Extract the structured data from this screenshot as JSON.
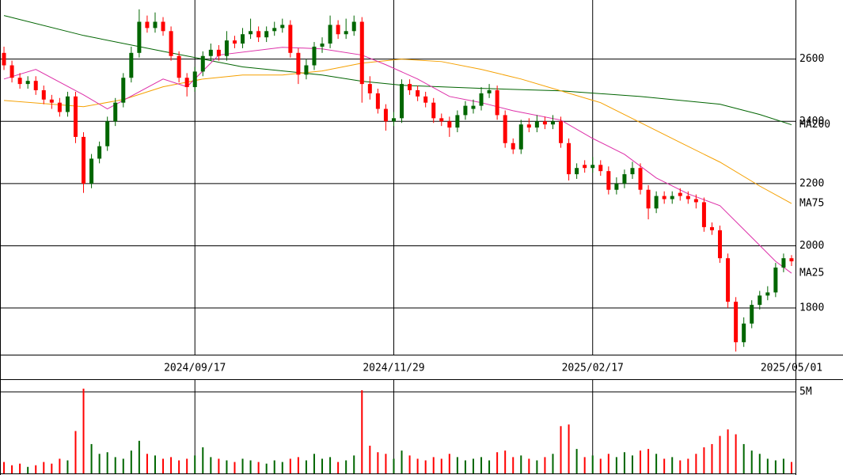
{
  "chart_data": {
    "type": "candlestick",
    "categories": [
      null,
      null,
      null,
      null,
      null,
      null,
      null,
      null,
      null,
      null,
      null,
      null,
      null,
      null,
      null,
      null,
      null,
      null,
      null,
      null,
      null,
      null,
      null,
      null,
      "2024/09/17",
      null,
      null,
      null,
      null,
      null,
      null,
      null,
      null,
      null,
      null,
      null,
      null,
      null,
      null,
      null,
      null,
      null,
      null,
      null,
      null,
      null,
      null,
      null,
      null,
      "2024/11/29",
      null,
      null,
      null,
      null,
      null,
      null,
      null,
      null,
      null,
      null,
      null,
      null,
      null,
      null,
      null,
      null,
      null,
      null,
      null,
      null,
      null,
      null,
      null,
      null,
      "2025/02/17",
      null,
      null,
      null,
      null,
      null,
      null,
      null,
      null,
      null,
      null,
      null,
      null,
      null,
      null,
      null,
      null,
      null,
      null,
      null,
      null,
      null,
      null,
      null,
      null,
      "2025/05/01"
    ],
    "open": [
      2620,
      2580,
      2540,
      2520,
      2530,
      2500,
      2470,
      2460,
      2430,
      2480,
      2350,
      2200,
      2280,
      2320,
      2400,
      2460,
      2540,
      2620,
      2720,
      2700,
      2720,
      2690,
      2610,
      2540,
      2510,
      2560,
      2610,
      2630,
      2610,
      2660,
      2650,
      2680,
      2690,
      2670,
      2690,
      2700,
      2710,
      2620,
      2550,
      2580,
      2640,
      2650,
      2710,
      2680,
      2690,
      2720,
      2520,
      2490,
      2440,
      2400,
      2410,
      2520,
      2500,
      2480,
      2460,
      2410,
      2400,
      2380,
      2420,
      2440,
      2450,
      2490,
      2500,
      2420,
      2330,
      2310,
      2390,
      2380,
      2400,
      2390,
      2400,
      2330,
      2230,
      2260,
      2250,
      2260,
      2240,
      2180,
      2200,
      2230,
      2250,
      2180,
      2120,
      2160,
      2150,
      2170,
      2160,
      2150,
      2140,
      2060,
      2050,
      1960,
      1820,
      1690,
      1750,
      1810,
      1840,
      1850,
      1930,
      1960
    ],
    "high": [
      2640,
      2595,
      2555,
      2545,
      2545,
      2515,
      2485,
      2475,
      2495,
      2495,
      2365,
      2295,
      2335,
      2415,
      2475,
      2555,
      2640,
      2760,
      2740,
      2750,
      2735,
      2705,
      2625,
      2555,
      2575,
      2625,
      2650,
      2645,
      2690,
      2675,
      2700,
      2730,
      2705,
      2705,
      2720,
      2730,
      2725,
      2635,
      2600,
      2655,
      2670,
      2740,
      2725,
      2730,
      2740,
      2735,
      2545,
      2505,
      2455,
      2430,
      2535,
      2535,
      2515,
      2495,
      2475,
      2425,
      2415,
      2435,
      2465,
      2470,
      2510,
      2520,
      2515,
      2435,
      2345,
      2405,
      2410,
      2420,
      2415,
      2420,
      2415,
      2345,
      2265,
      2275,
      2285,
      2275,
      2255,
      2220,
      2245,
      2270,
      2265,
      2195,
      2175,
      2175,
      2175,
      2185,
      2175,
      2165,
      2155,
      2075,
      2065,
      1975,
      1835,
      1770,
      1825,
      1855,
      1870,
      1945,
      1975,
      1970
    ],
    "low": [
      2565,
      2525,
      2505,
      2505,
      2485,
      2455,
      2440,
      2415,
      2415,
      2330,
      2170,
      2185,
      2265,
      2305,
      2385,
      2445,
      2525,
      2605,
      2685,
      2685,
      2675,
      2595,
      2525,
      2480,
      2495,
      2545,
      2595,
      2595,
      2595,
      2635,
      2635,
      2665,
      2655,
      2655,
      2675,
      2685,
      2605,
      2520,
      2535,
      2565,
      2620,
      2635,
      2665,
      2665,
      2675,
      2460,
      2470,
      2425,
      2370,
      2385,
      2395,
      2485,
      2465,
      2445,
      2395,
      2385,
      2350,
      2365,
      2405,
      2425,
      2435,
      2475,
      2405,
      2315,
      2295,
      2295,
      2365,
      2365,
      2375,
      2375,
      2315,
      2210,
      2215,
      2235,
      2235,
      2225,
      2165,
      2165,
      2185,
      2215,
      2165,
      2085,
      2105,
      2135,
      2135,
      2145,
      2135,
      2120,
      2045,
      2035,
      1945,
      1800,
      1660,
      1675,
      1735,
      1795,
      1825,
      1835,
      1915,
      1935
    ],
    "close": [
      2580,
      2540,
      2520,
      2530,
      2500,
      2470,
      2460,
      2430,
      2480,
      2350,
      2200,
      2280,
      2320,
      2400,
      2460,
      2540,
      2620,
      2720,
      2700,
      2720,
      2690,
      2610,
      2540,
      2510,
      2560,
      2610,
      2630,
      2610,
      2660,
      2650,
      2680,
      2690,
      2670,
      2690,
      2700,
      2710,
      2620,
      2550,
      2580,
      2640,
      2650,
      2710,
      2680,
      2690,
      2720,
      2520,
      2490,
      2440,
      2400,
      2410,
      2520,
      2500,
      2480,
      2460,
      2410,
      2400,
      2380,
      2420,
      2450,
      2450,
      2490,
      2500,
      2420,
      2330,
      2310,
      2390,
      2380,
      2400,
      2390,
      2400,
      2330,
      2230,
      2250,
      2250,
      2260,
      2240,
      2180,
      2200,
      2230,
      2250,
      2180,
      2120,
      2160,
      2150,
      2160,
      2160,
      2150,
      2140,
      2060,
      2050,
      1960,
      1820,
      1690,
      1750,
      1810,
      1840,
      1850,
      1930,
      1960,
      1950
    ],
    "up_color": "#006600",
    "down_color": "#ff0000",
    "ylim": [
      1650,
      2790
    ],
    "yticks": [
      1800,
      2000,
      2200,
      2400,
      2600
    ],
    "grid": true,
    "moving_averages": [
      {
        "name": "MA200",
        "color": "#006400",
        "x": [
          0,
          10,
          20,
          30,
          40,
          45,
          50,
          60,
          70,
          80,
          90,
          95,
          99
        ],
        "values": [
          2740,
          2676,
          2625,
          2575,
          2549,
          2529,
          2516,
          2506,
          2498,
          2480,
          2455,
          2422,
          2389
        ]
      },
      {
        "name": "MA75",
        "color": "#f5a000",
        "x": [
          0,
          10,
          15,
          20,
          25,
          30,
          35,
          40,
          45,
          50,
          55,
          60,
          65,
          70,
          75,
          80,
          85,
          90,
          95,
          99
        ],
        "values": [
          2467,
          2447,
          2470,
          2511,
          2536,
          2549,
          2549,
          2562,
          2587,
          2600,
          2592,
          2567,
          2536,
          2498,
          2460,
          2396,
          2332,
          2269,
          2192,
          2136
        ]
      },
      {
        "name": "MA25",
        "color": "#dd2fa8",
        "x": [
          0,
          4,
          10,
          13,
          20,
          23,
          27,
          35,
          40,
          45,
          48,
          52,
          56,
          60,
          64,
          70,
          74,
          78,
          82,
          86,
          90,
          94,
          97,
          99
        ],
        "values": [
          2536,
          2567,
          2485,
          2440,
          2536,
          2511,
          2613,
          2638,
          2633,
          2613,
          2582,
          2536,
          2480,
          2460,
          2434,
          2404,
          2345,
          2294,
          2218,
          2167,
          2129,
          2027,
          1950,
          1912
        ]
      }
    ],
    "volume": {
      "values": [
        700000,
        500000,
        600000,
        400000,
        500000,
        700000,
        600000,
        900000,
        800000,
        2600000,
        5200000,
        1800000,
        1200000,
        1300000,
        1000000,
        900000,
        1400000,
        2000000,
        1200000,
        1100000,
        900000,
        1000000,
        800000,
        900000,
        1100000,
        1600000,
        1000000,
        900000,
        800000,
        700000,
        900000,
        800000,
        700000,
        600000,
        800000,
        700000,
        900000,
        1000000,
        800000,
        1200000,
        900000,
        1000000,
        700000,
        800000,
        1100000,
        5100000,
        1700000,
        1300000,
        1200000,
        900000,
        1400000,
        1100000,
        900000,
        800000,
        1000000,
        900000,
        1200000,
        1000000,
        800000,
        900000,
        1000000,
        800000,
        1300000,
        1400000,
        1000000,
        1100000,
        900000,
        800000,
        1000000,
        1200000,
        2900000,
        3000000,
        1500000,
        1000000,
        1100000,
        900000,
        1200000,
        1000000,
        1300000,
        1100000,
        1400000,
        1500000,
        1200000,
        900000,
        1000000,
        800000,
        900000,
        1200000,
        1600000,
        1800000,
        2300000,
        2700000,
        2400000,
        1800000,
        1400000,
        1200000,
        900000,
        800000,
        900000,
        700000
      ],
      "ylim": [
        0,
        5730000
      ],
      "yticks": [
        {
          "value": 5000000,
          "label": "5M"
        }
      ]
    }
  }
}
